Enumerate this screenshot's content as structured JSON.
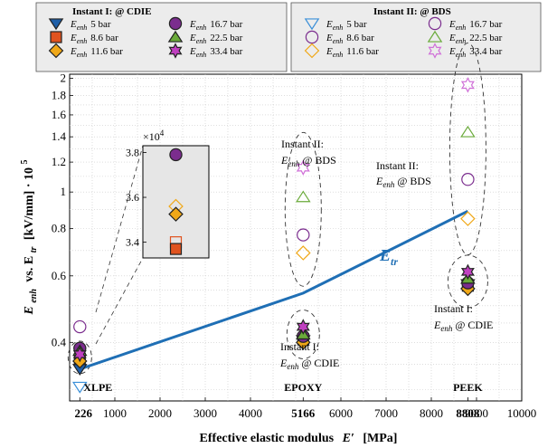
{
  "chart_data": {
    "type": "scatter",
    "xlabel": "Effective elastic modulus",
    "xlabel_symbol": "E′",
    "xlabel_unit": "[MPa]",
    "ylabel_prefix": "E",
    "ylabel_sub": "enh",
    "ylabel_mid": "vs. E",
    "ylabel_sub2": "tr",
    "ylabel_unit": "[kV/mm] · 10",
    "ylabel_exp": "5",
    "xlim": [
      0,
      10000
    ],
    "ylim": [
      0.28,
      2.05
    ],
    "y_scale": "log",
    "grid": true,
    "x_ticks": [
      1000,
      2000,
      3000,
      4000,
      6000,
      7000,
      8000,
      9000,
      10000
    ],
    "x_ticks_bold": [
      226,
      5166,
      8808
    ],
    "y_ticks": [
      0.4,
      0.6,
      0.8,
      1,
      1.2,
      1.4,
      1.6,
      1.8,
      2
    ],
    "materials": [
      {
        "name": "XLPE",
        "x": 226
      },
      {
        "name": "EPOXY",
        "x": 5166
      },
      {
        "name": "PEEK",
        "x": 8808
      }
    ],
    "e_tr_line": {
      "label": "E",
      "label_sub": "tr",
      "x": [
        226,
        5166,
        8808
      ],
      "y": [
        0.34,
        0.54,
        0.89
      ],
      "color": "#1f6fb5"
    },
    "series": [
      {
        "name": "5 bar",
        "instant": "I",
        "marker": "triangle-down",
        "color": "#1f5fa8",
        "values": [
          0.34,
          0.405,
          0.57
        ]
      },
      {
        "name": "8.6 bar",
        "instant": "I",
        "marker": "square",
        "color": "#e0531f",
        "values": [
          0.362,
          0.408,
          0.565
        ]
      },
      {
        "name": "11.6 bar",
        "instant": "I",
        "marker": "diamond",
        "color": "#f0a818",
        "values": [
          0.357,
          0.4,
          0.555
        ]
      },
      {
        "name": "16.7 bar",
        "instant": "I",
        "marker": "circle",
        "color": "#7b2d8e",
        "values": [
          0.386,
          0.415,
          0.575
        ]
      },
      {
        "name": "22.5 bar",
        "instant": "I",
        "marker": "triangle-up",
        "color": "#6aaa3a",
        "values": [
          0.38,
          0.42,
          0.59
        ]
      },
      {
        "name": "33.4 bar",
        "instant": "I",
        "marker": "hexagram",
        "color": "#c040c0",
        "values": [
          0.372,
          0.44,
          0.615
        ]
      },
      {
        "name": "5 bar",
        "instant": "II",
        "marker": "triangle-down",
        "color": "#3a8fd8",
        "values": [
          0.305,
          null,
          null
        ]
      },
      {
        "name": "8.6 bar",
        "instant": "II",
        "marker": "circle",
        "color": "#7b2d8e",
        "values": [
          null,
          0.77,
          1.08
        ]
      },
      {
        "name": "11.6 bar",
        "instant": "II",
        "marker": "diamond",
        "color": "#f0a818",
        "values": [
          null,
          0.69,
          0.85
        ]
      },
      {
        "name": "16.7 bar",
        "instant": "II",
        "marker": "circle",
        "color": "#7b2d8e",
        "values": [
          0.44,
          null,
          null
        ]
      },
      {
        "name": "22.5 bar",
        "instant": "II",
        "marker": "triangle-up",
        "color": "#6aaa3a",
        "values": [
          null,
          0.97,
          1.44
        ]
      },
      {
        "name": "33.4 bar",
        "instant": "II",
        "marker": "hexagram",
        "color": "#d070d8",
        "values": [
          null,
          1.16,
          1.92
        ]
      }
    ],
    "legend": {
      "instant1_title": "Instant I: @ CDIE",
      "instant2_title": "Instant II: @ BDS",
      "symbol": "E",
      "symbol_sub": "enh",
      "entries": [
        "5 bar",
        "8.6 bar",
        "11.6 bar",
        "16.7 bar",
        "22.5 bar",
        "33.4 bar"
      ]
    },
    "annotations": {
      "inst2_label": "Instant II:",
      "inst1_label": "Instant I:",
      "at_bds": "@ BDS",
      "at_cdie": "@ CDIE",
      "e_sym": "E",
      "e_sub": "enh"
    },
    "inset": {
      "multiplier_prefix": "×10",
      "multiplier_exp": "4",
      "y_ticks": [
        3.4,
        3.6,
        3.8
      ],
      "ylim": [
        3.33,
        3.83
      ],
      "points": [
        {
          "marker": "circle",
          "color": "#7b2d8e",
          "value": 3.79
        },
        {
          "marker": "diamond-open",
          "color": "#f0a818",
          "value": 3.56
        },
        {
          "marker": "diamond",
          "color": "#f0a818",
          "value": 3.525
        },
        {
          "marker": "square-open",
          "color": "#e0531f",
          "value": 3.4
        },
        {
          "marker": "square",
          "color": "#e0531f",
          "value": 3.37
        }
      ]
    }
  }
}
